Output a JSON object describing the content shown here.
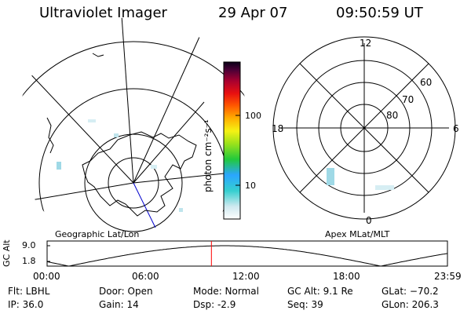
{
  "header": {
    "title": "Ultraviolet Imager",
    "date": "29 Apr 07",
    "time": "09:50:59 UT"
  },
  "geo_map": {
    "label": "Geographic Lat/Lon"
  },
  "apex_map": {
    "label": "Apex MLat/MLT",
    "mlt_labels": [
      "12",
      "18",
      "6",
      "0"
    ],
    "lat_labels": [
      "60",
      "70",
      "80"
    ]
  },
  "colorbar": {
    "unit_label": "photon cm⁻²s⁻¹",
    "tick_labels": [
      "100",
      "10"
    ]
  },
  "orbit_plot": {
    "ylabel": "GC Alt",
    "y_ticks": [
      "9.0",
      "1.8"
    ],
    "x_ticks": [
      "00:00",
      "06:00",
      "12:00",
      "18:00",
      "23:59"
    ],
    "current_time_hours": 9.85
  },
  "info": {
    "filter": "Flt: LBHL",
    "ip": "IP: 36.0",
    "door": "Door: Open",
    "gain": "Gain: 14",
    "mode": "Mode: Normal",
    "dsp": "Dsp:    -2.9",
    "gc_alt": "GC Alt: 9.1 Re",
    "seq": "Seq: 39",
    "glat": "GLat: −70.2",
    "glon": "GLon: 206.3"
  },
  "colors": {
    "line": "#000000",
    "orbit_marker": "#ff0000",
    "meridian": "#0000cc",
    "emission": "#9fd9e6"
  }
}
